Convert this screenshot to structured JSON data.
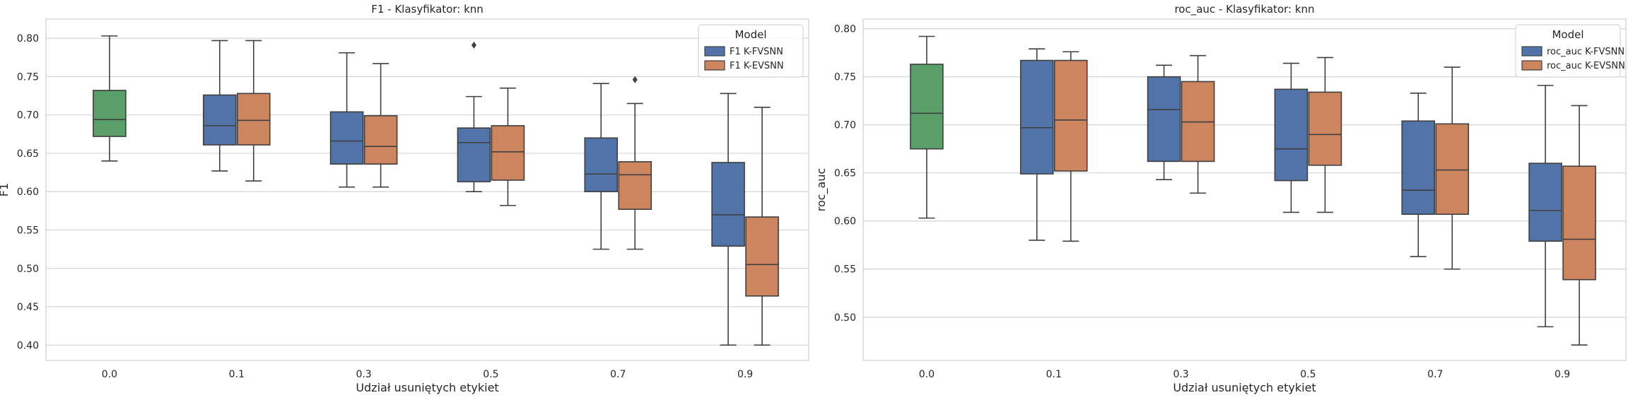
{
  "colors": {
    "green": "#5a9e6a",
    "blue": "#5173a8",
    "orange": "#cd8560",
    "line": "#3f3f3f",
    "grid": "#d5d5d5"
  },
  "chart_data": [
    {
      "type": "box",
      "title": "F1 - Klasyfikator: knn",
      "xlabel": "Udział usuniętych etykiet",
      "ylabel": "F1",
      "categories": [
        "0.0",
        "0.1",
        "0.3",
        "0.5",
        "0.7",
        "0.9"
      ],
      "ylim": [
        0.38,
        0.825
      ],
      "yticks": [
        "0.40",
        "0.45",
        "0.50",
        "0.55",
        "0.60",
        "0.65",
        "0.70",
        "0.75",
        "0.80"
      ],
      "grid": true,
      "legend": {
        "title": "Model",
        "position": "top-right"
      },
      "baseline": {
        "category": "0.0",
        "color": "#5a9e6a",
        "min": 0.64,
        "q1": 0.672,
        "median": 0.694,
        "q3": 0.732,
        "max": 0.803
      },
      "series": [
        {
          "name": "F1 K-FVSNN",
          "color": "#5173a8",
          "boxes": [
            {
              "min": 0.627,
              "q1": 0.661,
              "median": 0.686,
              "q3": 0.726,
              "max": 0.797
            },
            {
              "min": 0.606,
              "q1": 0.636,
              "median": 0.666,
              "q3": 0.704,
              "max": 0.781
            },
            {
              "min": 0.6,
              "q1": 0.613,
              "median": 0.664,
              "q3": 0.683,
              "max": 0.724,
              "outliers": [
                0.791
              ]
            },
            {
              "min": 0.525,
              "q1": 0.6,
              "median": 0.623,
              "q3": 0.67,
              "max": 0.741
            },
            {
              "min": 0.4,
              "q1": 0.529,
              "median": 0.57,
              "q3": 0.638,
              "max": 0.728
            }
          ]
        },
        {
          "name": "F1 K-EVSNN",
          "color": "#cd8560",
          "boxes": [
            {
              "min": 0.614,
              "q1": 0.661,
              "median": 0.693,
              "q3": 0.728,
              "max": 0.797
            },
            {
              "min": 0.606,
              "q1": 0.636,
              "median": 0.659,
              "q3": 0.699,
              "max": 0.767
            },
            {
              "min": 0.582,
              "q1": 0.615,
              "median": 0.652,
              "q3": 0.686,
              "max": 0.735
            },
            {
              "min": 0.525,
              "q1": 0.577,
              "median": 0.622,
              "q3": 0.639,
              "max": 0.715,
              "outliers": [
                0.746
              ]
            },
            {
              "min": 0.4,
              "q1": 0.464,
              "median": 0.505,
              "q3": 0.567,
              "max": 0.71
            }
          ]
        }
      ]
    },
    {
      "type": "box",
      "title": "roc_auc - Klasyfikator: knn",
      "xlabel": "Udział usuniętych etykiet",
      "ylabel": "roc_auc",
      "categories": [
        "0.0",
        "0.1",
        "0.3",
        "0.5",
        "0.7",
        "0.9"
      ],
      "ylim": [
        0.455,
        0.81
      ],
      "yticks": [
        "0.50",
        "0.55",
        "0.60",
        "0.65",
        "0.70",
        "0.75",
        "0.80"
      ],
      "grid": true,
      "legend": {
        "title": "Model",
        "position": "top-right"
      },
      "baseline": {
        "category": "0.0",
        "color": "#5a9e6a",
        "min": 0.603,
        "q1": 0.675,
        "median": 0.712,
        "q3": 0.763,
        "max": 0.792
      },
      "series": [
        {
          "name": "roc_auc K-FVSNN",
          "color": "#5173a8",
          "boxes": [
            {
              "min": 0.58,
              "q1": 0.649,
              "median": 0.697,
              "q3": 0.767,
              "max": 0.779
            },
            {
              "min": 0.643,
              "q1": 0.662,
              "median": 0.716,
              "q3": 0.75,
              "max": 0.762
            },
            {
              "min": 0.609,
              "q1": 0.642,
              "median": 0.675,
              "q3": 0.737,
              "max": 0.764
            },
            {
              "min": 0.563,
              "q1": 0.607,
              "median": 0.632,
              "q3": 0.704,
              "max": 0.733
            },
            {
              "min": 0.49,
              "q1": 0.579,
              "median": 0.611,
              "q3": 0.66,
              "max": 0.741
            }
          ]
        },
        {
          "name": "roc_auc K-EVSNN",
          "color": "#cd8560",
          "boxes": [
            {
              "min": 0.579,
              "q1": 0.652,
              "median": 0.705,
              "q3": 0.767,
              "max": 0.776
            },
            {
              "min": 0.629,
              "q1": 0.662,
              "median": 0.703,
              "q3": 0.745,
              "max": 0.772
            },
            {
              "min": 0.609,
              "q1": 0.658,
              "median": 0.69,
              "q3": 0.734,
              "max": 0.77
            },
            {
              "min": 0.55,
              "q1": 0.607,
              "median": 0.653,
              "q3": 0.701,
              "max": 0.76
            },
            {
              "min": 0.471,
              "q1": 0.539,
              "median": 0.581,
              "q3": 0.657,
              "max": 0.72
            }
          ]
        }
      ]
    }
  ]
}
